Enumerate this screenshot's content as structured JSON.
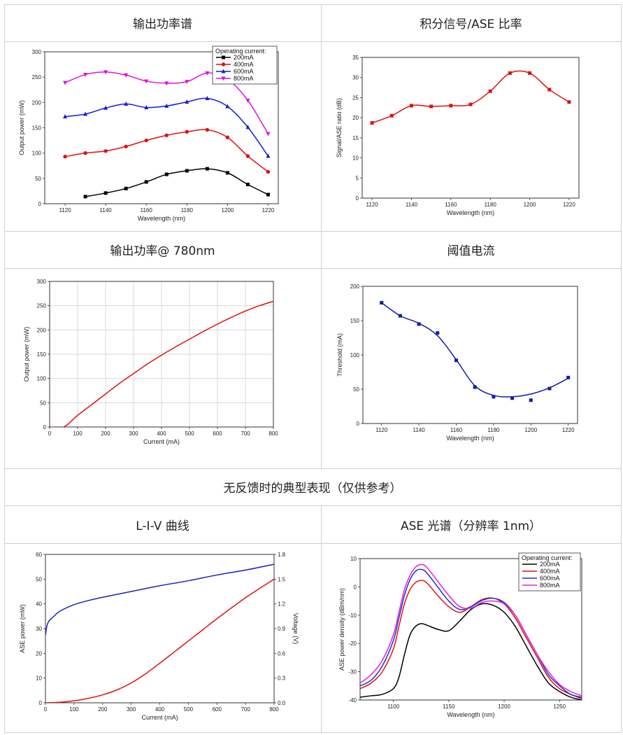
{
  "titles": {
    "c1": "输出功率谱",
    "c2": "积分信号/ASE 比率",
    "c3": "输出功率@ 780nm",
    "c4": "阈值电流",
    "section": "无反馈时的典型表现（仅供参考）",
    "c5": "L-I-V 曲线",
    "c6": "ASE  光谱（分辨率  1nm）"
  },
  "chart_data": [
    {
      "id": "output-power-spectrum",
      "type": "line",
      "xlabel": "Wavelength (nm)",
      "ylabel": "Output power (mW)",
      "xlim": [
        1110,
        1225
      ],
      "ylim": [
        0,
        300
      ],
      "xticks": [
        1120,
        1140,
        1160,
        1180,
        1200,
        1220
      ],
      "yticks": [
        0,
        50,
        100,
        150,
        200,
        250,
        300
      ],
      "grid": false,
      "legend_title": "Operating current:",
      "legend_position": "top-right",
      "series": [
        {
          "name": "200mA",
          "color": "#000000",
          "marker": "square",
          "x": [
            1130,
            1140,
            1150,
            1160,
            1170,
            1180,
            1190,
            1200,
            1210,
            1220
          ],
          "y": [
            14,
            21,
            30,
            43,
            58,
            65,
            69,
            61,
            38,
            18
          ]
        },
        {
          "name": "400mA",
          "color": "#e01010",
          "marker": "circle",
          "x": [
            1120,
            1130,
            1140,
            1150,
            1160,
            1170,
            1180,
            1190,
            1200,
            1210,
            1220
          ],
          "y": [
            93,
            100,
            104,
            113,
            125,
            135,
            142,
            146,
            131,
            94,
            63
          ]
        },
        {
          "name": "600mA",
          "color": "#1020d0",
          "marker": "triangle-up",
          "x": [
            1120,
            1130,
            1140,
            1150,
            1160,
            1170,
            1180,
            1190,
            1200,
            1210,
            1220
          ],
          "y": [
            172,
            177,
            189,
            197,
            190,
            193,
            201,
            208,
            192,
            151,
            94
          ]
        },
        {
          "name": "800mA",
          "color": "#e010e0",
          "marker": "triangle-down",
          "x": [
            1120,
            1130,
            1140,
            1150,
            1160,
            1170,
            1180,
            1190,
            1200,
            1210,
            1220
          ],
          "y": [
            239,
            255,
            260,
            254,
            242,
            238,
            241,
            258,
            246,
            204,
            138
          ]
        }
      ]
    },
    {
      "id": "signal-ase-ratio",
      "type": "line",
      "xlabel": "Wavelength (nm)",
      "ylabel": "Signal/ASE ratio (dB)",
      "xlim": [
        1115,
        1225
      ],
      "ylim": [
        0,
        35
      ],
      "xticks": [
        1120,
        1140,
        1160,
        1180,
        1200,
        1220
      ],
      "yticks": [
        0,
        5,
        10,
        15,
        20,
        25,
        30,
        35
      ],
      "grid": false,
      "series": [
        {
          "color": "#e01010",
          "marker": "square",
          "x": [
            1120,
            1130,
            1140,
            1150,
            1160,
            1170,
            1180,
            1190,
            1200,
            1210,
            1220
          ],
          "y": [
            18.7,
            20.5,
            23.0,
            22.8,
            23.0,
            23.3,
            26.6,
            31.1,
            31.1,
            27.0,
            23.9
          ]
        }
      ]
    },
    {
      "id": "output-power-780",
      "type": "line",
      "xlabel": "Current (mA)",
      "ylabel": "Output power (mW)",
      "xlim": [
        0,
        800
      ],
      "ylim": [
        0,
        300
      ],
      "xticks": [
        0,
        100,
        200,
        300,
        400,
        500,
        600,
        700,
        800
      ],
      "yticks": [
        0,
        50,
        100,
        150,
        200,
        250,
        300
      ],
      "grid": true,
      "series": [
        {
          "color": "#e01010",
          "x": [
            0,
            50,
            100,
            150,
            200,
            250,
            300,
            350,
            400,
            450,
            500,
            550,
            600,
            650,
            700,
            750,
            800
          ],
          "y": [
            0,
            0,
            24,
            46,
            68,
            90,
            110,
            130,
            148,
            165,
            181,
            197,
            212,
            226,
            239,
            250,
            259
          ]
        }
      ]
    },
    {
      "id": "threshold-current",
      "type": "line",
      "xlabel": "Wavelength (nm)",
      "ylabel": "Threshold (mA)",
      "xlim": [
        1110,
        1225
      ],
      "ylim": [
        0,
        200
      ],
      "xticks": [
        1120,
        1140,
        1160,
        1180,
        1200,
        1220
      ],
      "yticks": [
        0,
        50,
        100,
        150,
        200
      ],
      "grid": false,
      "series": [
        {
          "color": "#1020a0",
          "marker": "square",
          "x": [
            1120,
            1130,
            1140,
            1150,
            1160,
            1170,
            1180,
            1190,
            1200,
            1210,
            1220
          ],
          "y": [
            176,
            157,
            145,
            132,
            92,
            53,
            39,
            37,
            34,
            51,
            67
          ],
          "fit_x": [
            1120,
            1130,
            1140,
            1150,
            1160,
            1170,
            1180,
            1190,
            1200,
            1210,
            1220
          ],
          "fit_y": [
            176,
            157,
            146,
            128,
            93,
            55,
            41,
            39,
            43,
            52,
            66
          ]
        }
      ]
    },
    {
      "id": "liv-curve",
      "type": "line",
      "xlabel": "Current (mA)",
      "ylabel": "ASE power (mW)",
      "y2label": "Voltage (V)",
      "xlim": [
        0,
        800
      ],
      "ylim": [
        0,
        60
      ],
      "y2lim": [
        0,
        1.8
      ],
      "xticks": [
        0,
        100,
        200,
        300,
        400,
        500,
        600,
        700,
        800
      ],
      "yticks": [
        0,
        10,
        20,
        30,
        40,
        50,
        60
      ],
      "y2ticks": [
        "0.0",
        "0.3",
        "0.6",
        "0.9",
        "1.2",
        "1.5",
        "1.8"
      ],
      "grid": false,
      "series": [
        {
          "color": "#e01010",
          "axis": "left",
          "x": [
            0,
            50,
            100,
            150,
            200,
            250,
            300,
            350,
            400,
            450,
            500,
            550,
            600,
            650,
            700,
            750,
            800
          ],
          "y": [
            0,
            0.2,
            0.8,
            1.8,
            3.2,
            5.2,
            8.0,
            11.7,
            16.0,
            20.5,
            25.0,
            29.5,
            34.0,
            38.3,
            42.5,
            46.3,
            50.0
          ]
        },
        {
          "color": "#2020c0",
          "axis": "right",
          "x": [
            0,
            5,
            10,
            20,
            30,
            50,
            100,
            150,
            200,
            300,
            400,
            500,
            600,
            700,
            800
          ],
          "y": [
            0.82,
            0.93,
            0.98,
            1.02,
            1.05,
            1.11,
            1.19,
            1.24,
            1.28,
            1.35,
            1.42,
            1.48,
            1.55,
            1.61,
            1.68
          ]
        }
      ]
    },
    {
      "id": "ase-spectrum",
      "type": "line",
      "xlabel": "Wavelength (nm)",
      "ylabel": "ASE power density (dBm/nm)",
      "xlim": [
        1070,
        1270
      ],
      "ylim": [
        -40,
        10
      ],
      "xticks": [
        1100,
        1150,
        1200,
        1250
      ],
      "yticks": [
        -40,
        -30,
        -20,
        -10,
        0,
        10
      ],
      "grid": false,
      "legend_title": "Operating current:",
      "legend_position": "top-right",
      "series": [
        {
          "name": "200mA",
          "color": "#000000",
          "x": [
            1070,
            1080,
            1090,
            1100,
            1105,
            1110,
            1115,
            1120,
            1125,
            1130,
            1140,
            1150,
            1160,
            1170,
            1180,
            1190,
            1200,
            1210,
            1220,
            1230,
            1240,
            1250,
            1260,
            1270
          ],
          "y": [
            -39,
            -38.5,
            -38,
            -36,
            -32,
            -24,
            -17,
            -14,
            -13,
            -13.5,
            -15,
            -15.5,
            -12,
            -8,
            -6,
            -6.5,
            -9,
            -14,
            -21,
            -28,
            -34,
            -37,
            -39,
            -40
          ]
        },
        {
          "name": "400mA",
          "color": "#e01010",
          "x": [
            1070,
            1080,
            1090,
            1100,
            1105,
            1110,
            1115,
            1120,
            1125,
            1130,
            1140,
            1150,
            1160,
            1170,
            1180,
            1190,
            1200,
            1210,
            1220,
            1230,
            1240,
            1250,
            1260,
            1270
          ],
          "y": [
            -36,
            -34,
            -30,
            -22,
            -14,
            -6,
            -1,
            1.5,
            2.3,
            1.5,
            -3,
            -7,
            -9,
            -7,
            -4.5,
            -4,
            -6,
            -11,
            -18,
            -25,
            -32,
            -36,
            -38,
            -39.5
          ]
        },
        {
          "name": "600mA",
          "color": "#2030d0",
          "x": [
            1070,
            1080,
            1090,
            1100,
            1105,
            1110,
            1115,
            1120,
            1125,
            1130,
            1140,
            1150,
            1160,
            1170,
            1180,
            1190,
            1200,
            1210,
            1220,
            1230,
            1240,
            1250,
            1260,
            1270
          ],
          "y": [
            -35,
            -33,
            -28,
            -19,
            -11,
            -3,
            2.5,
            5.5,
            6.2,
            5.0,
            0,
            -5,
            -8,
            -7,
            -4.8,
            -4,
            -5.5,
            -10,
            -17,
            -24,
            -31,
            -35,
            -38,
            -39
          ]
        },
        {
          "name": "800mA",
          "color": "#e020e0",
          "x": [
            1070,
            1080,
            1090,
            1100,
            1105,
            1110,
            1115,
            1120,
            1125,
            1130,
            1140,
            1150,
            1160,
            1170,
            1180,
            1190,
            1200,
            1210,
            1220,
            1230,
            1240,
            1250,
            1260,
            1270
          ],
          "y": [
            -34,
            -31,
            -26,
            -17,
            -9,
            -1,
            4,
            7,
            7.9,
            7.0,
            2,
            -3,
            -7,
            -7.5,
            -5.5,
            -5,
            -6,
            -10,
            -17,
            -24,
            -30,
            -34.5,
            -37,
            -38.5
          ]
        }
      ]
    }
  ]
}
